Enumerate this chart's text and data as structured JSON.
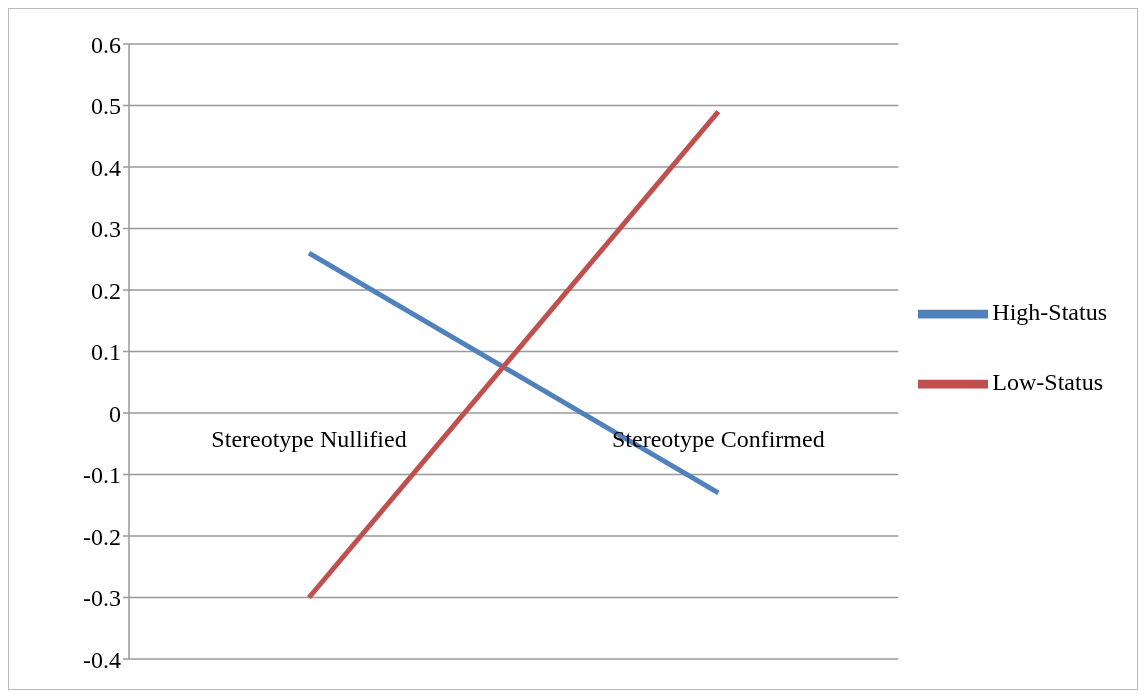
{
  "chart_data": {
    "type": "line",
    "categories": [
      "Stereotype Nullified",
      "Stereotype Confirmed"
    ],
    "series": [
      {
        "name": "High-Status",
        "color": "#4f81bd",
        "values": [
          0.26,
          -0.13
        ]
      },
      {
        "name": "Low-Status",
        "color": "#c0504d",
        "values": [
          -0.3,
          0.49
        ]
      }
    ],
    "ylim": [
      -0.4,
      0.6
    ],
    "yticks": [
      -0.4,
      -0.3,
      -0.2,
      -0.1,
      0,
      0.1,
      0.2,
      0.3,
      0.4,
      0.5,
      0.6
    ],
    "grid": "y",
    "legend": "right",
    "marker": "none",
    "line_style": "solid"
  }
}
